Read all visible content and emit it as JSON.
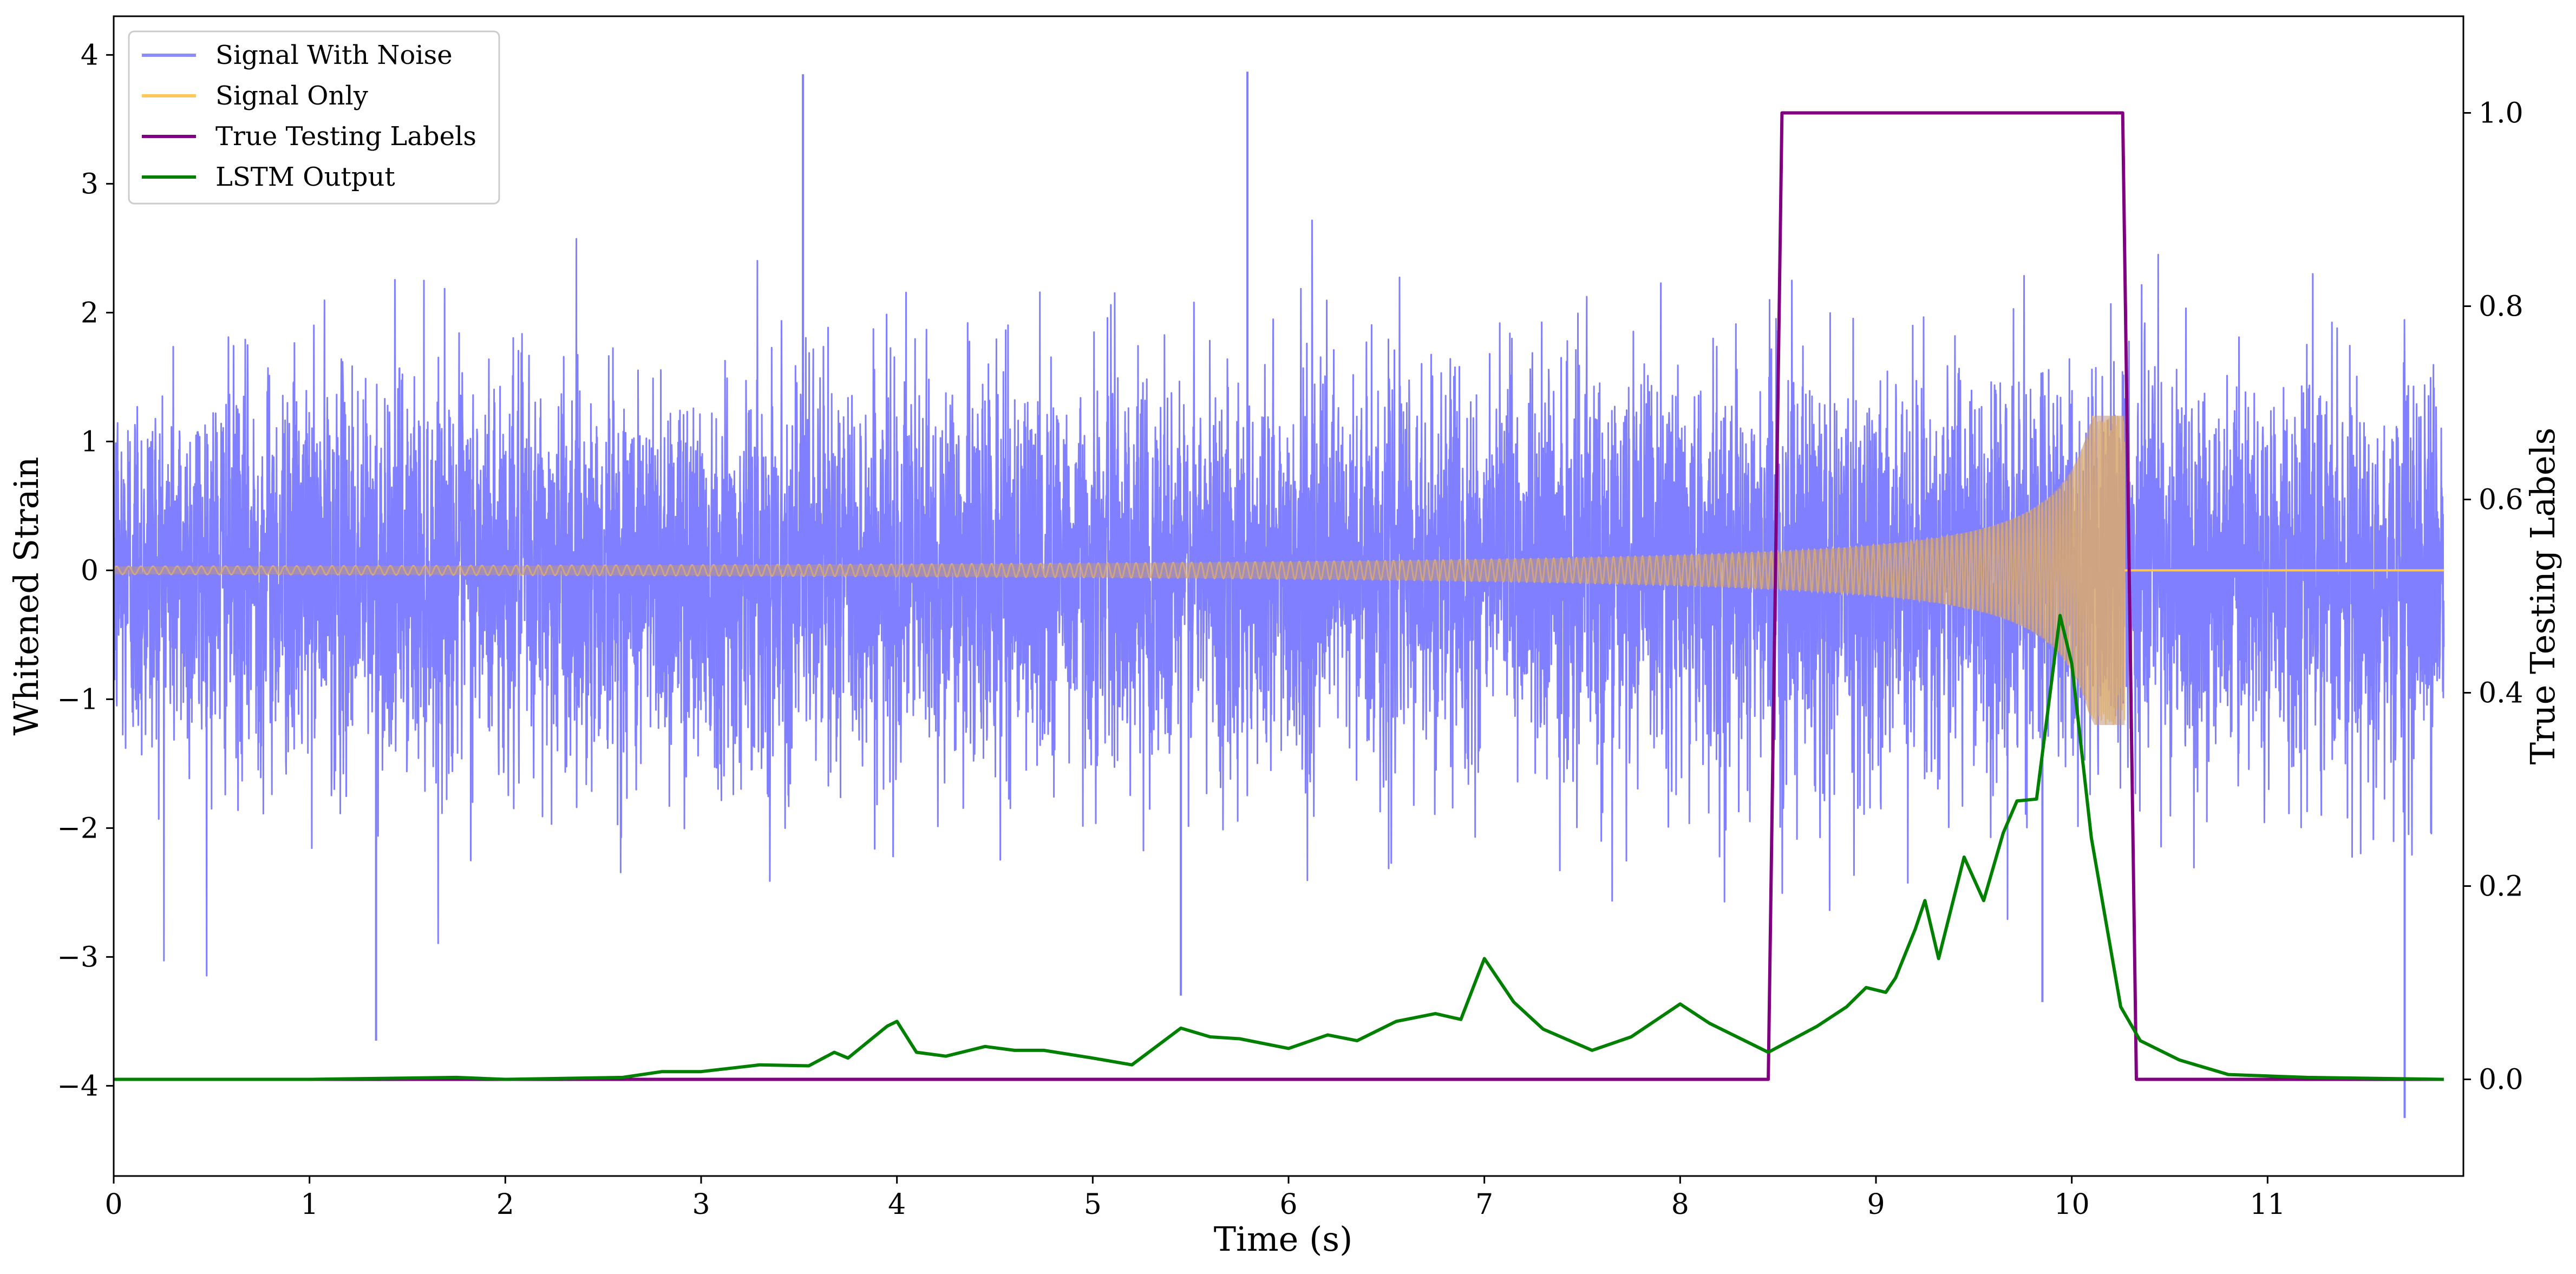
{
  "chart_data": {
    "type": "line",
    "xlabel": "Time (s)",
    "ylabel": "Whitened Strain",
    "y2label": "True Testing Labels",
    "xlim": [
      0,
      12
    ],
    "ylim": [
      -4.7,
      4.3
    ],
    "y2lim": [
      -0.1,
      1.1
    ],
    "xticks": [
      0,
      1,
      2,
      3,
      4,
      5,
      6,
      7,
      8,
      9,
      10,
      11
    ],
    "yticks": [
      -4,
      -3,
      -2,
      -1,
      0,
      1,
      2,
      3,
      4
    ],
    "y2ticks": [
      0.0,
      0.2,
      0.4,
      0.6,
      0.8,
      1.0
    ],
    "xtick_labels": [
      "0",
      "1",
      "2",
      "3",
      "4",
      "5",
      "6",
      "7",
      "8",
      "9",
      "10",
      "11"
    ],
    "ytick_labels": [
      "−4",
      "−3",
      "−2",
      "−1",
      "0",
      "1",
      "2",
      "3",
      "4"
    ],
    "y2tick_labels": [
      "0.0",
      "0.2",
      "0.4",
      "0.6",
      "0.8",
      "1.0"
    ],
    "grid": false,
    "legend_position": "top-left",
    "series": [
      {
        "name": "Signal With Noise",
        "axis": "left",
        "color": "#7f7fff",
        "description_type": "dense noise",
        "duration": 11.9,
        "typical_std": 0.75,
        "peaks": [
          {
            "x": 3.52,
            "y": 3.85
          },
          {
            "x": 5.79,
            "y": 3.87
          },
          {
            "x": 1.34,
            "y": -3.65
          },
          {
            "x": 11.7,
            "y": -4.25
          },
          {
            "x": 9.85,
            "y": -3.35
          },
          {
            "x": 5.45,
            "y": -3.3
          }
        ]
      },
      {
        "name": "Signal Only",
        "axis": "left",
        "color": "#ffc65c",
        "description_type": "chirp",
        "start": 0.0,
        "merger": 10.27,
        "end": 11.9,
        "amplitude_start": 0.03,
        "amplitude_at_8_5": 0.15,
        "amplitude_peak": 1.2
      },
      {
        "name": "True Testing Labels",
        "axis": "right",
        "color": "#800080",
        "x": [
          0,
          8.45,
          8.52,
          10.26,
          10.33,
          11.9
        ],
        "y": [
          0,
          0,
          1,
          1,
          0,
          0
        ]
      },
      {
        "name": "LSTM Output",
        "axis": "right",
        "color": "#008000",
        "x": [
          0,
          1.0,
          1.75,
          2.0,
          2.6,
          2.8,
          3.0,
          3.3,
          3.55,
          3.68,
          3.75,
          3.95,
          4.0,
          4.1,
          4.25,
          4.45,
          4.6,
          4.75,
          5.0,
          5.2,
          5.45,
          5.6,
          5.75,
          6.0,
          6.2,
          6.35,
          6.55,
          6.75,
          6.88,
          7.0,
          7.15,
          7.3,
          7.55,
          7.75,
          8.0,
          8.15,
          8.45,
          8.7,
          8.85,
          8.95,
          9.05,
          9.1,
          9.2,
          9.25,
          9.32,
          9.45,
          9.55,
          9.65,
          9.72,
          9.82,
          9.94,
          10.0,
          10.1,
          10.25,
          10.35,
          10.55,
          10.8,
          11.2,
          11.9
        ],
        "y": [
          0.0,
          0.0,
          0.002,
          0.0,
          0.002,
          0.008,
          0.008,
          0.015,
          0.014,
          0.028,
          0.022,
          0.055,
          0.06,
          0.028,
          0.024,
          0.034,
          0.03,
          0.03,
          0.022,
          0.015,
          0.053,
          0.044,
          0.042,
          0.032,
          0.046,
          0.04,
          0.06,
          0.068,
          0.062,
          0.125,
          0.08,
          0.052,
          0.03,
          0.044,
          0.078,
          0.058,
          0.028,
          0.055,
          0.075,
          0.095,
          0.09,
          0.105,
          0.155,
          0.185,
          0.125,
          0.23,
          0.185,
          0.255,
          0.288,
          0.29,
          0.48,
          0.43,
          0.25,
          0.075,
          0.04,
          0.02,
          0.005,
          0.002,
          0.0
        ]
      }
    ]
  }
}
